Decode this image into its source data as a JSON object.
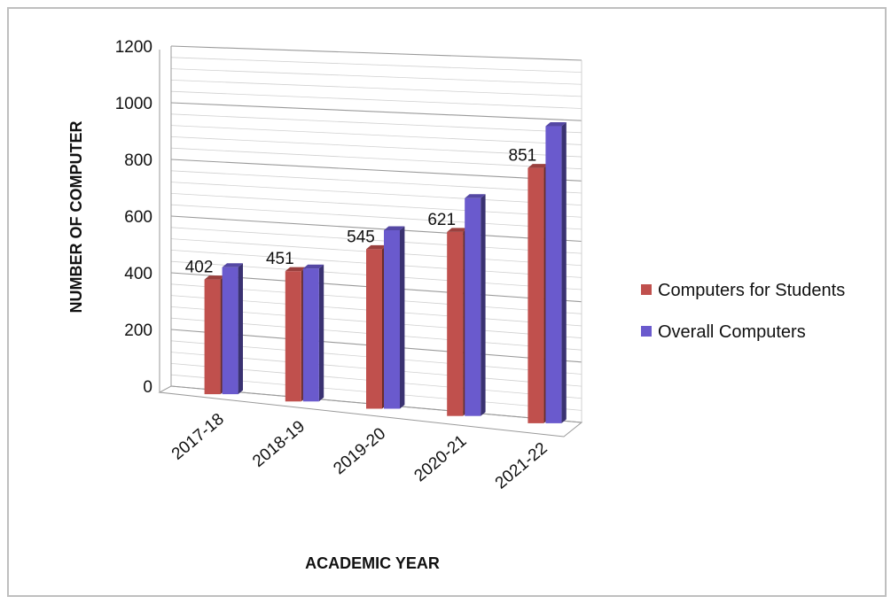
{
  "chart_data": {
    "type": "bar",
    "title": "",
    "xlabel": "ACADEMIC YEAR",
    "ylabel": "NUMBER OF COMPUTER",
    "categories": [
      "2017-18",
      "2018-19",
      "2019-20",
      "2020-21",
      "2021-22"
    ],
    "ylim": [
      0,
      1200
    ],
    "yticks": [
      0,
      200,
      400,
      600,
      800,
      1000,
      1200
    ],
    "series": [
      {
        "name": "Computers for Students",
        "color": "#c0504d",
        "values": [
          402,
          451,
          545,
          621,
          851
        ],
        "data_labels": [
          "402",
          "451",
          "545",
          "621",
          "851"
        ]
      },
      {
        "name": "Overall Computers",
        "color": "#6a5acd",
        "values": [
          445,
          460,
          610,
          735,
          990
        ]
      }
    ],
    "grid": true,
    "legend_position": "right",
    "style": "3d-clustered-column"
  }
}
